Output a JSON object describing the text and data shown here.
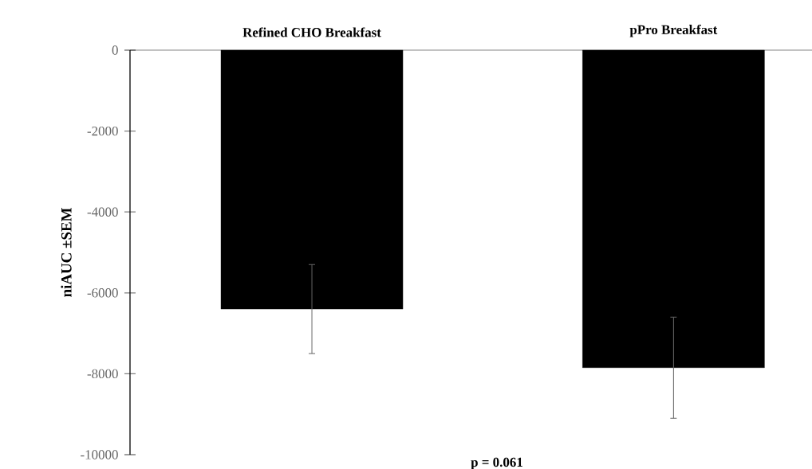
{
  "chart_data": {
    "type": "bar",
    "categories": [
      "Refined CHO Breakfast",
      "pPro Breakfast"
    ],
    "values": [
      -6400,
      -7850
    ],
    "errors": [
      1100,
      1250
    ],
    "color": "#000000",
    "ylabel": "niAUC ±SEM",
    "ylim": [
      -10000,
      0
    ],
    "yticks": [
      -10000,
      -8000,
      -6000,
      -4000,
      -2000,
      0
    ],
    "annotations": [
      "p = 0.061"
    ]
  }
}
